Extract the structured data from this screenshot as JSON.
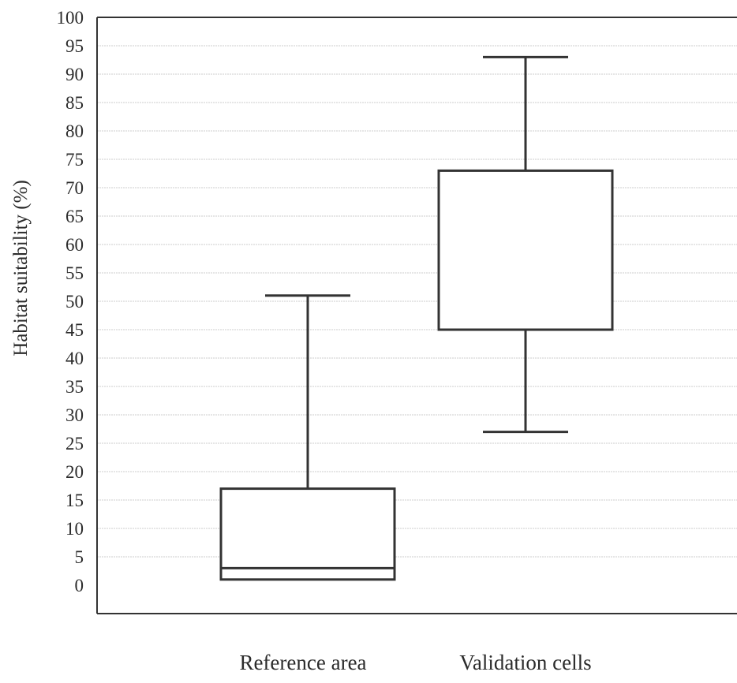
{
  "chart_data": {
    "type": "box",
    "title": "",
    "xlabel": "",
    "ylabel": "Habitat suitability (%)",
    "ylim": [
      0,
      100
    ],
    "y_ticks": [
      "0",
      "5",
      "10",
      "15",
      "20",
      "25",
      "30",
      "35",
      "40",
      "45",
      "50",
      "55",
      "60",
      "65",
      "70",
      "75",
      "80",
      "85",
      "90",
      "95",
      "100"
    ],
    "grid": true,
    "categories": [
      "Reference area",
      "Validation cells"
    ],
    "boxes": [
      {
        "category": "Reference area",
        "min": 1,
        "q1": 1,
        "median": 3,
        "q3": 17,
        "max": 51
      },
      {
        "category": "Validation cells",
        "min": 27,
        "q1": 45,
        "median": 45,
        "q3": 73,
        "max": 93
      }
    ]
  },
  "colors": {
    "axis": "#333333",
    "box_stroke": "#333333",
    "grid": "#d6d6d6",
    "text": "#2b2b2b"
  }
}
